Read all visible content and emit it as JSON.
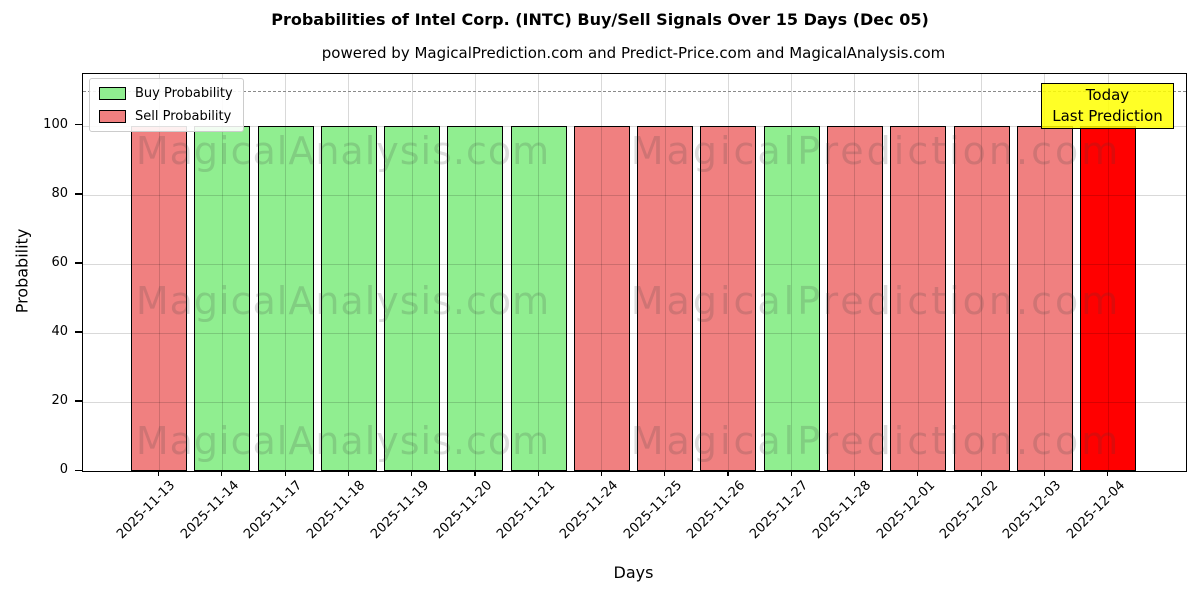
{
  "title": "Probabilities of Intel Corp. (INTC) Buy/Sell Signals Over 15 Days (Dec 05)",
  "subtitle": "powered by MagicalPrediction.com and Predict-Price.com and MagicalAnalysis.com",
  "annotation": {
    "line1": "Today",
    "line2": "Last Prediction"
  },
  "legend": [
    {
      "label": "Buy Probability",
      "color": "#90ee90"
    },
    {
      "label": "Sell Probability",
      "color": "#f08080"
    }
  ],
  "watermarks": {
    "left": "MagicalAnalysis.com",
    "right": "MagicalPrediction.com"
  },
  "colors": {
    "buy": "#90ee90",
    "sell": "#f08080",
    "today_highlight": "#ff0000",
    "bar_edge": "#000000",
    "annotation_bg": "#ffff00",
    "grid": "#d9d9d9",
    "threshold_dash": "#8a8a8a"
  },
  "chart_data": {
    "type": "bar",
    "title": "Probabilities of Intel Corp. (INTC) Buy/Sell Signals Over 15 Days (Dec 05)",
    "xlabel": "Days",
    "ylabel": "Probability",
    "ylim": [
      0,
      115
    ],
    "yticks": [
      0,
      20,
      40,
      60,
      80,
      100
    ],
    "threshold_dashed_line_y": 110,
    "grid": true,
    "legend_position": "upper left",
    "categories": [
      "2025-11-13",
      "2025-11-14",
      "2025-11-17",
      "2025-11-18",
      "2025-11-19",
      "2025-11-20",
      "2025-11-21",
      "2025-11-24",
      "2025-11-25",
      "2025-11-26",
      "2025-11-27",
      "2025-11-28",
      "2025-12-01",
      "2025-12-02",
      "2025-12-03",
      "2025-12-04"
    ],
    "bars": [
      {
        "date": "2025-11-13",
        "value": 100,
        "signal": "sell",
        "highlight": false
      },
      {
        "date": "2025-11-14",
        "value": 100,
        "signal": "buy",
        "highlight": false
      },
      {
        "date": "2025-11-17",
        "value": 100,
        "signal": "buy",
        "highlight": false
      },
      {
        "date": "2025-11-18",
        "value": 100,
        "signal": "buy",
        "highlight": false
      },
      {
        "date": "2025-11-19",
        "value": 100,
        "signal": "buy",
        "highlight": false
      },
      {
        "date": "2025-11-20",
        "value": 100,
        "signal": "buy",
        "highlight": false
      },
      {
        "date": "2025-11-21",
        "value": 100,
        "signal": "buy",
        "highlight": false
      },
      {
        "date": "2025-11-24",
        "value": 100,
        "signal": "sell",
        "highlight": false
      },
      {
        "date": "2025-11-25",
        "value": 100,
        "signal": "sell",
        "highlight": false
      },
      {
        "date": "2025-11-26",
        "value": 100,
        "signal": "sell",
        "highlight": false
      },
      {
        "date": "2025-11-27",
        "value": 100,
        "signal": "buy",
        "highlight": false
      },
      {
        "date": "2025-11-28",
        "value": 100,
        "signal": "sell",
        "highlight": false
      },
      {
        "date": "2025-12-01",
        "value": 100,
        "signal": "sell",
        "highlight": false
      },
      {
        "date": "2025-12-02",
        "value": 100,
        "signal": "sell",
        "highlight": false
      },
      {
        "date": "2025-12-03",
        "value": 100,
        "signal": "sell",
        "highlight": false
      },
      {
        "date": "2025-12-04",
        "value": 100,
        "signal": "sell",
        "highlight": true
      }
    ]
  }
}
